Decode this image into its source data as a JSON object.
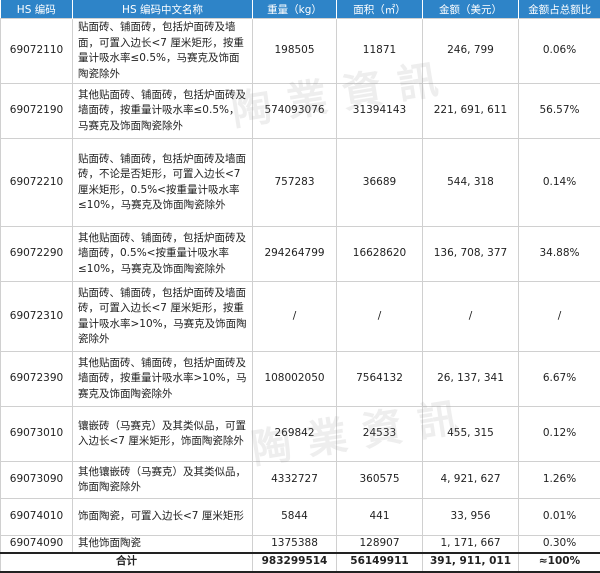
{
  "header": {
    "hs_code": "HS 编码",
    "name_cn": "HS 编码中文名称",
    "weight": "重量（kg）",
    "area": "面积（㎡）",
    "amount": "金额（美元）",
    "share": "金额占总额比"
  },
  "rows": [
    {
      "code": "69072110",
      "name": "贴面砖、铺面砖，包括炉面砖及墙面，可置入边长<7 厘米矩形，按重量计吸水率≤0.5%，马赛克及饰面陶瓷除外",
      "weight": "198505",
      "area": "11871",
      "amount": "246, 799",
      "share": "0.06%"
    },
    {
      "code": "69072190",
      "name": "其他贴面砖、铺面砖，包括炉面砖及墙面砖，按重量计吸水率≤0.5%，马赛克及饰面陶瓷除外",
      "weight": "574093076",
      "area": "31394143",
      "amount": "221, 691, 611",
      "share": "56.57%"
    },
    {
      "code": "69072210",
      "name": "贴面砖、铺面砖，包括炉面砖及墙面砖，不论是否矩形，可置入边长<7 厘米矩形，0.5%<按重量计吸水率≤10%，马赛克及饰面陶瓷除外",
      "weight": "757283",
      "area": "36689",
      "amount": "544, 318",
      "share": "0.14%"
    },
    {
      "code": "69072290",
      "name": "其他贴面砖、铺面砖，包括炉面砖及墙面砖，0.5%<按重量计吸水率≤10%，马赛克及饰面陶瓷除外",
      "weight": "294264799",
      "area": "16628620",
      "amount": "136, 708, 377",
      "share": "34.88%"
    },
    {
      "code": "69072310",
      "name": "贴面砖、铺面砖，包括炉面砖及墙面砖，可置入边长<7 厘米矩形，按重量计吸水率>10%，马赛克及饰面陶瓷除外",
      "weight": "/",
      "area": "/",
      "amount": "/",
      "share": "/"
    },
    {
      "code": "69072390",
      "name": "其他贴面砖、铺面砖，包括炉面砖及墙面砖，按重量计吸水率>10%，马赛克及饰面陶瓷除外",
      "weight": "108002050",
      "area": "7564132",
      "amount": "26, 137, 341",
      "share": "6.67%"
    },
    {
      "code": "69073010",
      "name": "镶嵌砖（马赛克）及其类似品，可置入边长<7 厘米矩形，饰面陶瓷除外",
      "weight": "269842",
      "area": "24533",
      "amount": "455, 315",
      "share": "0.12%"
    },
    {
      "code": "69073090",
      "name": "其他镶嵌砖（马赛克）及其类似品，饰面陶瓷除外",
      "weight": "4332727",
      "area": "360575",
      "amount": "4, 921, 627",
      "share": "1.26%"
    },
    {
      "code": "69074010",
      "name": "饰面陶瓷，可置入边长<7 厘米矩形",
      "weight": "5844",
      "area": "441",
      "amount": "33, 956",
      "share": "0.01%"
    },
    {
      "code": "69074090",
      "name": "其他饰面陶瓷",
      "weight": "1375388",
      "area": "128907",
      "amount": "1, 171, 667",
      "share": "0.30%"
    }
  ],
  "total": {
    "label": "合计",
    "weight": "983299514",
    "area": "56149911",
    "amount": "391, 911, 011",
    "share": "≈100%"
  },
  "watermark": {
    "text": "陶業資訊"
  }
}
